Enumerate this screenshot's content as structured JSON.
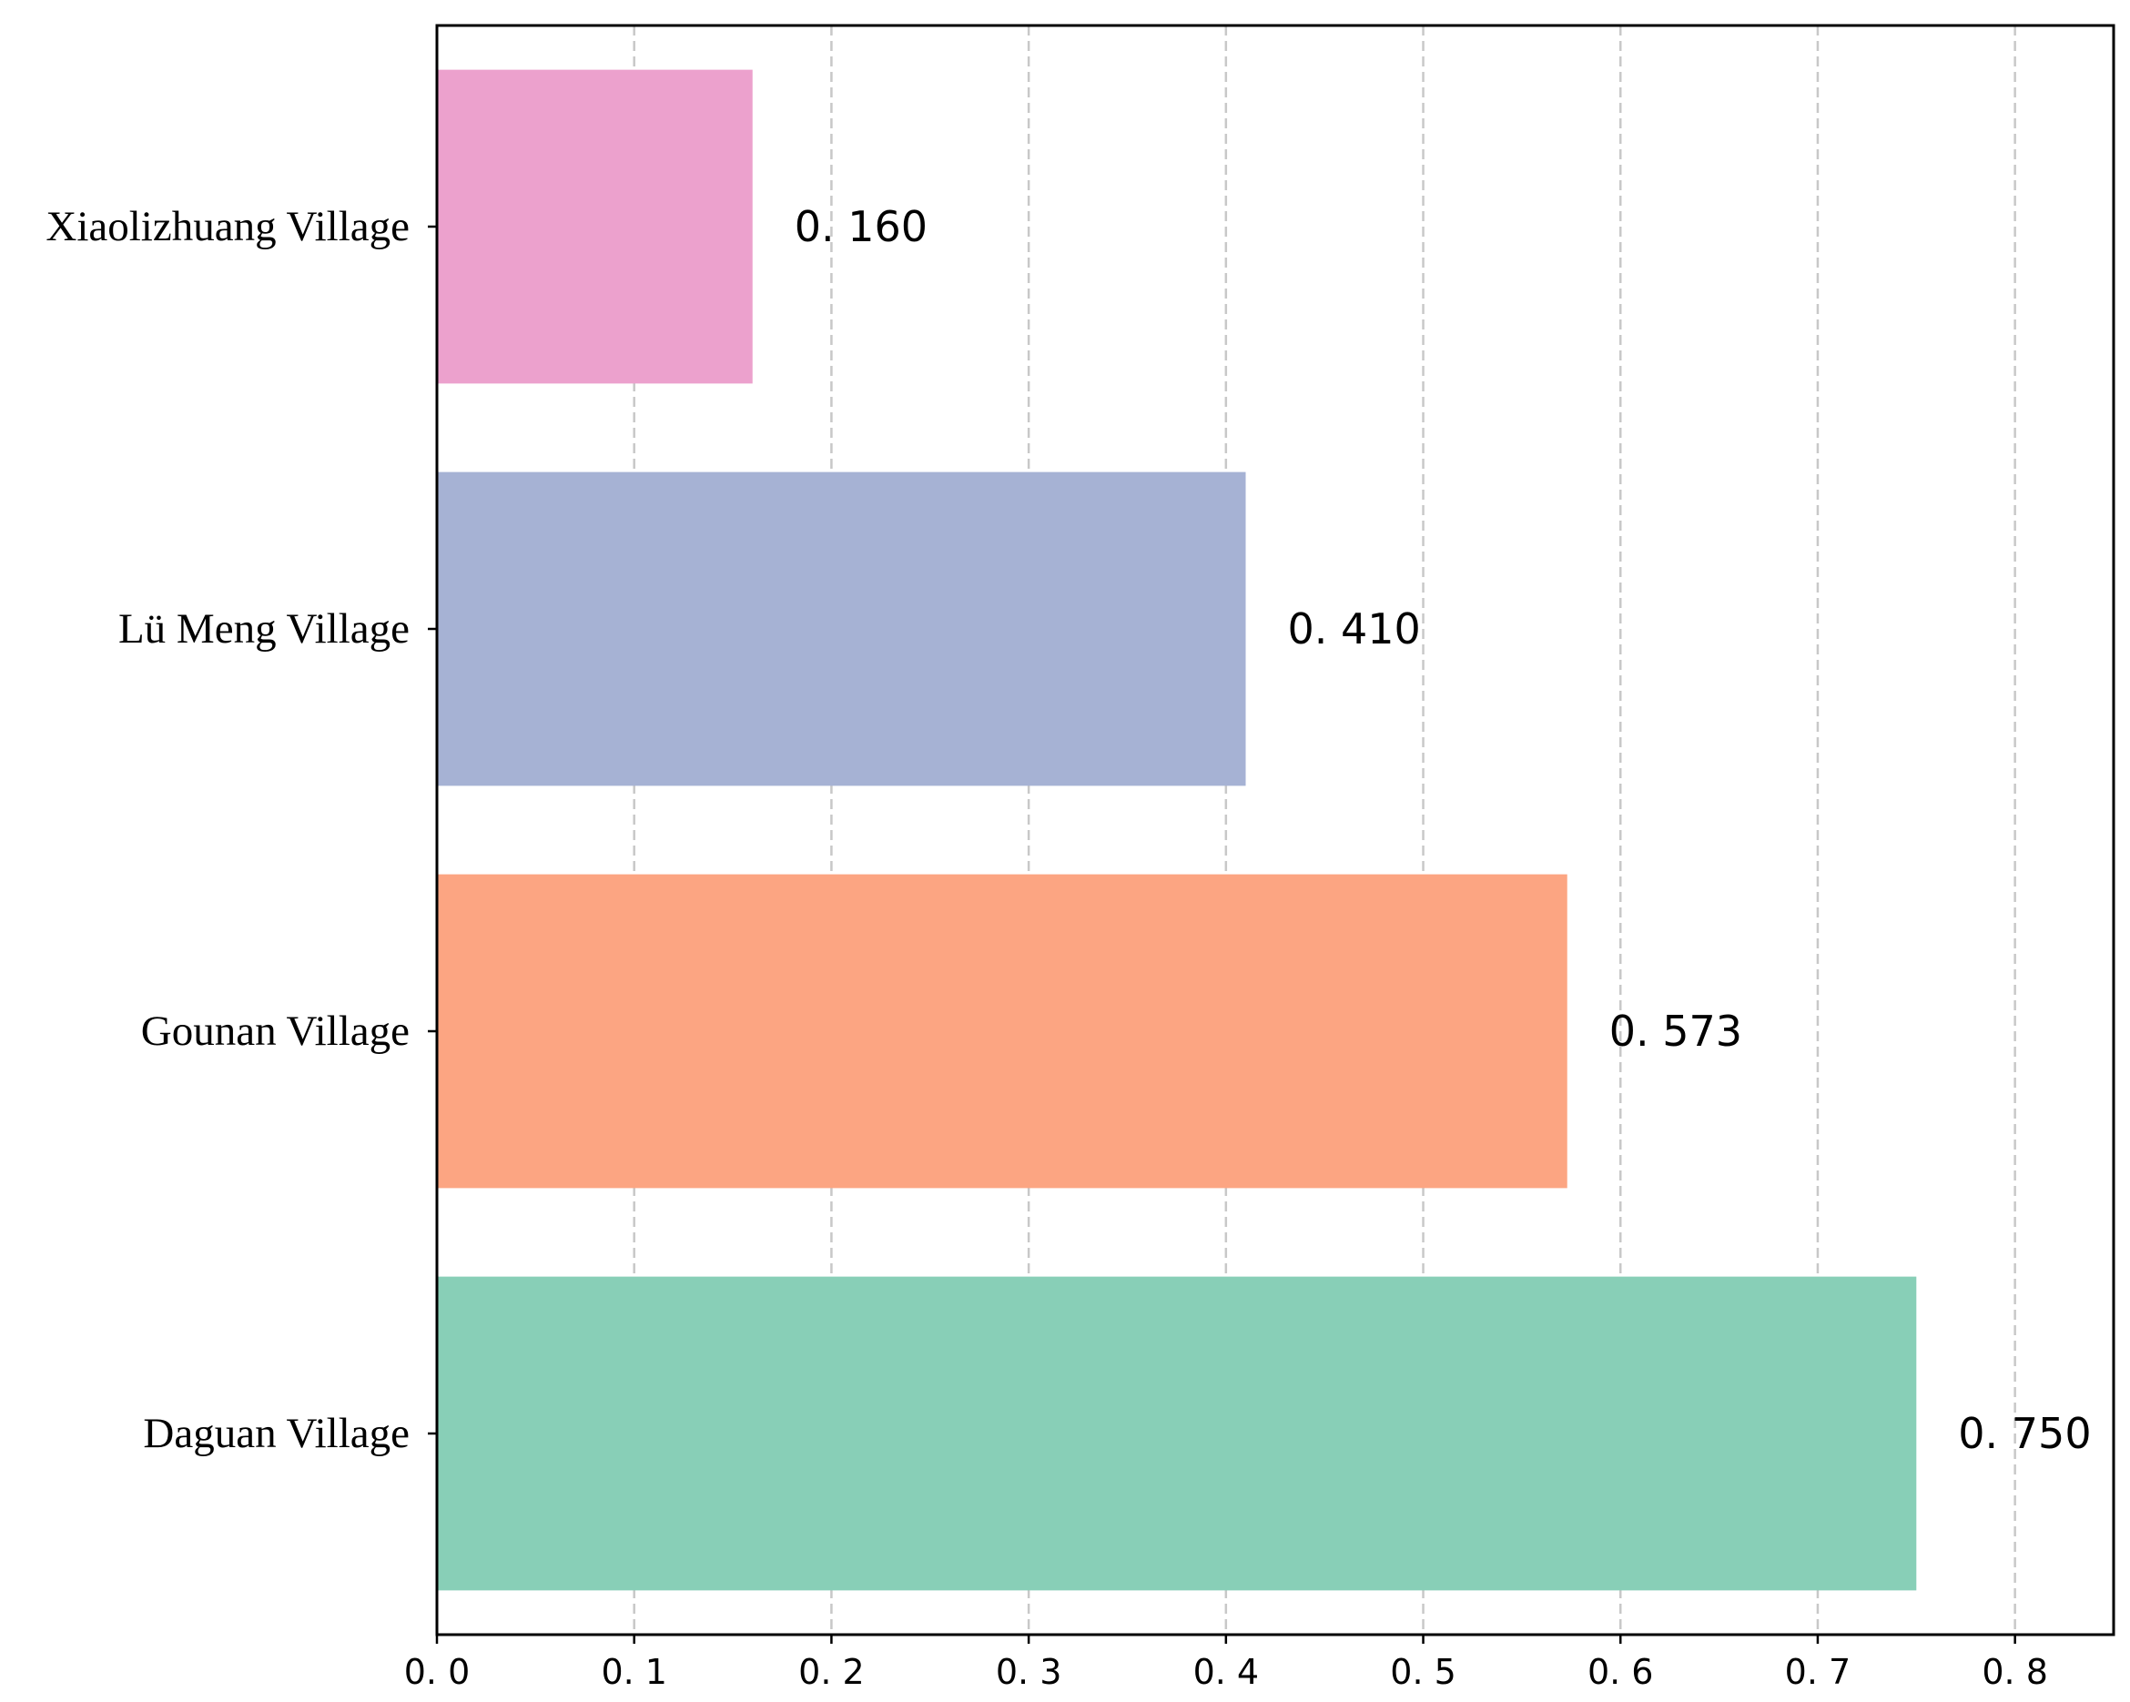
{
  "chart_data": {
    "type": "bar",
    "orientation": "horizontal",
    "categories": [
      "Daguan Village",
      "Gounan Village",
      "Lü Meng Village",
      "Xiaolizhuang Village"
    ],
    "values": [
      0.75,
      0.573,
      0.41,
      0.16
    ],
    "value_labels": [
      "0. 750",
      "0. 573",
      "0. 410",
      "0. 160"
    ],
    "colors": [
      "#88cfb7",
      "#fca582",
      "#a6b2d4",
      "#eca1cd"
    ],
    "xlim": [
      0,
      0.85
    ],
    "xticks": [
      0.0,
      0.1,
      0.2,
      0.3,
      0.4,
      0.5,
      0.6,
      0.7,
      0.8
    ],
    "xtick_labels": [
      "0. 0",
      "0. 1",
      "0. 2",
      "0. 3",
      "0. 4",
      "0. 5",
      "0. 6",
      "0. 7",
      "0. 8"
    ],
    "grid": "x-dashed",
    "title": "",
    "xlabel": "",
    "ylabel": ""
  }
}
